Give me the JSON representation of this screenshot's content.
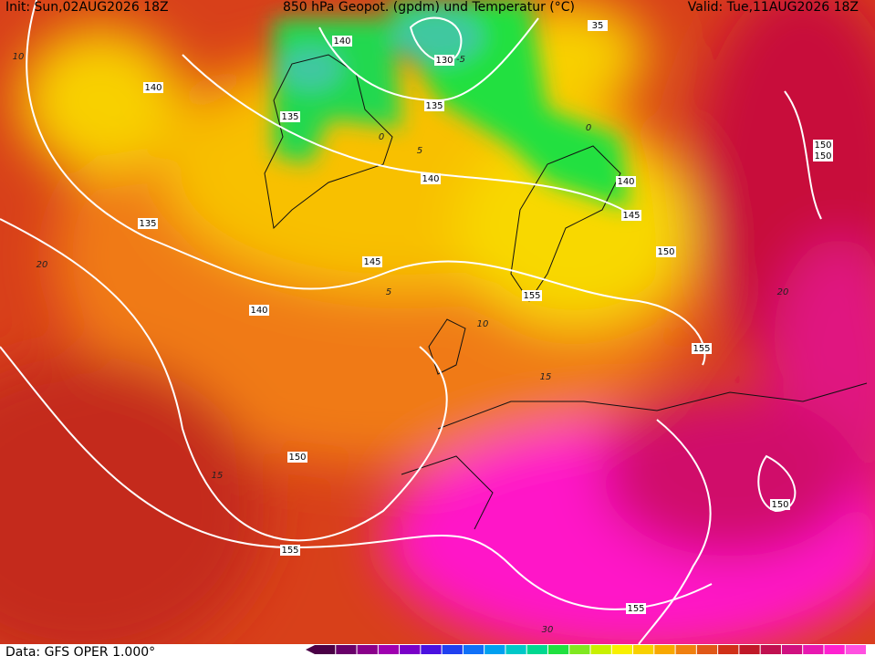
{
  "header": {
    "init": "Init: Sun,02AUG2026 18Z",
    "title": "850 hPa Geopot. (gpdm) und Temperatur (°C)",
    "valid": "Valid: Tue,11AUG2026 18Z"
  },
  "footer": {
    "data": "Data: GFS OPER 1.000°"
  },
  "geopotential_labels": [
    "140",
    "130",
    "135",
    "140",
    "135",
    "140",
    "140",
    "145",
    "150",
    "150",
    "150",
    "135",
    "145",
    "155",
    "140",
    "155",
    "150",
    "155",
    "150",
    "155",
    "35"
  ],
  "temperature_labels": [
    "10",
    "0",
    "5",
    "5",
    "10",
    "15",
    "20",
    "20",
    "30",
    "0",
    "15",
    "-5"
  ]
}
